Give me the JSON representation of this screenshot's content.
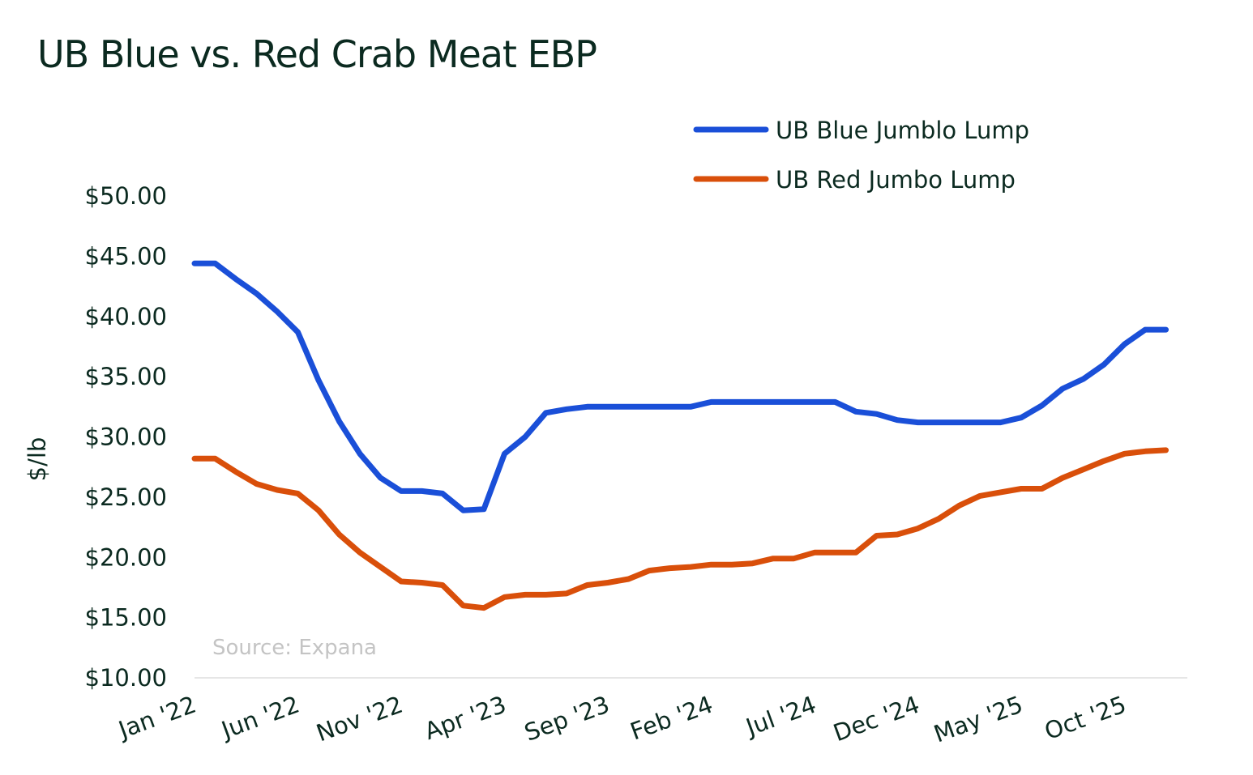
{
  "chart_data": {
    "type": "line",
    "title": "UB Blue vs. Red Crab Meat EBP",
    "ylabel": "$/lb",
    "xlabel": "",
    "ylim": [
      10,
      50
    ],
    "yticks": [
      "$10.00",
      "$15.00",
      "$20.00",
      "$25.00",
      "$30.00",
      "$35.00",
      "$40.00",
      "$45.00",
      "$50.00"
    ],
    "ytick_values": [
      10,
      15,
      20,
      25,
      30,
      35,
      40,
      45,
      50
    ],
    "xticks": [
      "Jan '22",
      "Jun '22",
      "Nov '22",
      "Apr '23",
      "Sep '23",
      "Feb '24",
      "Jul '24",
      "Dec '24",
      "May '25",
      "Oct '25"
    ],
    "grid": false,
    "legend_position": "top-right",
    "annotation": "Source: Expana",
    "x": [
      "2022-01",
      "2022-02",
      "2022-03",
      "2022-04",
      "2022-05",
      "2022-06",
      "2022-07",
      "2022-08",
      "2022-09",
      "2022-10",
      "2022-11",
      "2022-12",
      "2023-01",
      "2023-02",
      "2023-03",
      "2023-04",
      "2023-05",
      "2023-06",
      "2023-07",
      "2023-08",
      "2023-09",
      "2023-10",
      "2023-11",
      "2023-12",
      "2024-01",
      "2024-02",
      "2024-03",
      "2024-04",
      "2024-05",
      "2024-06",
      "2024-07",
      "2024-08",
      "2024-09",
      "2024-10",
      "2024-11",
      "2024-12",
      "2025-01",
      "2025-02",
      "2025-03",
      "2025-04",
      "2025-05",
      "2025-06",
      "2025-07",
      "2025-08",
      "2025-09",
      "2025-10",
      "2025-11",
      "2025-12"
    ],
    "series": [
      {
        "name": "UB Blue Jumblo Lump",
        "color": "#1a4fd8",
        "values": [
          44.4,
          44.4,
          43.1,
          41.9,
          40.4,
          38.7,
          34.7,
          31.3,
          28.6,
          26.6,
          25.5,
          25.5,
          25.3,
          23.9,
          24.0,
          28.6,
          30.0,
          32.0,
          32.3,
          32.5,
          32.5,
          32.5,
          32.5,
          32.5,
          32.5,
          32.9,
          32.9,
          32.9,
          32.9,
          32.9,
          32.9,
          32.9,
          32.1,
          31.9,
          31.4,
          31.2,
          31.2,
          31.2,
          31.2,
          31.2,
          31.6,
          32.6,
          34.0,
          34.8,
          36.0,
          37.7,
          38.9,
          38.9
        ]
      },
      {
        "name": "UB Red Jumbo Lump",
        "color": "#d94f0a",
        "values": [
          28.2,
          28.2,
          27.1,
          26.1,
          25.6,
          25.3,
          23.9,
          21.9,
          20.4,
          19.2,
          18.0,
          17.9,
          17.7,
          16.0,
          15.8,
          16.7,
          16.9,
          16.9,
          17.0,
          17.7,
          17.9,
          18.2,
          18.9,
          19.1,
          19.2,
          19.4,
          19.4,
          19.5,
          19.9,
          19.9,
          20.4,
          20.4,
          20.4,
          21.8,
          21.9,
          22.4,
          23.2,
          24.3,
          25.1,
          25.4,
          25.7,
          25.7,
          26.6,
          27.3,
          28.0,
          28.6,
          28.8,
          28.9
        ]
      }
    ]
  }
}
